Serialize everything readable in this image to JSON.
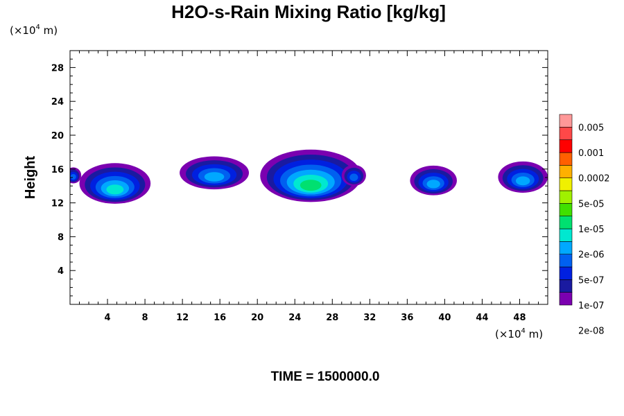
{
  "chart_data": {
    "type": "heatmap",
    "title": "H2O-s-Rain Mixing Ratio [kg/kg]",
    "y_units": "(×10",
    "y_units_exp": "4",
    "y_units_tail": " m)",
    "x_units": "(×10",
    "x_units_exp": "4",
    "x_units_tail": " m)",
    "ylabel": "Height",
    "xlim": [
      0,
      51
    ],
    "ylim": [
      0,
      30
    ],
    "x_ticks": [
      4,
      8,
      12,
      16,
      20,
      24,
      28,
      32,
      36,
      40,
      44,
      48
    ],
    "x_tick_labels": [
      "4",
      "8",
      "12",
      "16",
      "20",
      "24",
      "28",
      "32",
      "36",
      "40",
      "44",
      "48"
    ],
    "y_ticks": [
      4,
      8,
      12,
      16,
      20,
      24,
      28
    ],
    "y_tick_labels": [
      "4",
      "8",
      "12",
      "16",
      "20",
      "24",
      "28"
    ],
    "colorbar": {
      "levels": [
        "0.005",
        "0.001",
        "0.0002",
        "5e-05",
        "1e-05",
        "2e-06",
        "5e-07",
        "1e-07",
        "2e-08"
      ],
      "colors": [
        "#7b00b0",
        "#1a1aa0",
        "#0020e0",
        "#0060f0",
        "#00a8ff",
        "#00e8d0",
        "#00e070",
        "#40e000",
        "#a0f000",
        "#f0f000",
        "#ffb000",
        "#ff6000",
        "#ff0000",
        "#ff4848",
        "#ff9898"
      ]
    },
    "cloud_blobs": [
      {
        "x": [
          -0.5,
          1.2
        ],
        "y": [
          14.3,
          16.2
        ],
        "level": 3
      },
      {
        "x": [
          1.0,
          8.6
        ],
        "y": [
          11.9,
          16.7
        ],
        "level": 5
      },
      {
        "x": [
          11.7,
          19.1
        ],
        "y": [
          13.6,
          17.5
        ],
        "level": 4
      },
      {
        "x": [
          20.3,
          31.1
        ],
        "y": [
          12.1,
          18.3
        ],
        "level": 6
      },
      {
        "x": [
          29.0,
          31.6
        ],
        "y": [
          14.0,
          16.5
        ],
        "level": 3
      },
      {
        "x": [
          36.3,
          41.3
        ],
        "y": [
          12.9,
          16.4
        ],
        "level": 4
      },
      {
        "x": [
          45.7,
          51.0
        ],
        "y": [
          13.2,
          16.9
        ],
        "level": 4
      }
    ],
    "time_label": "TIME = 1500000.0"
  }
}
